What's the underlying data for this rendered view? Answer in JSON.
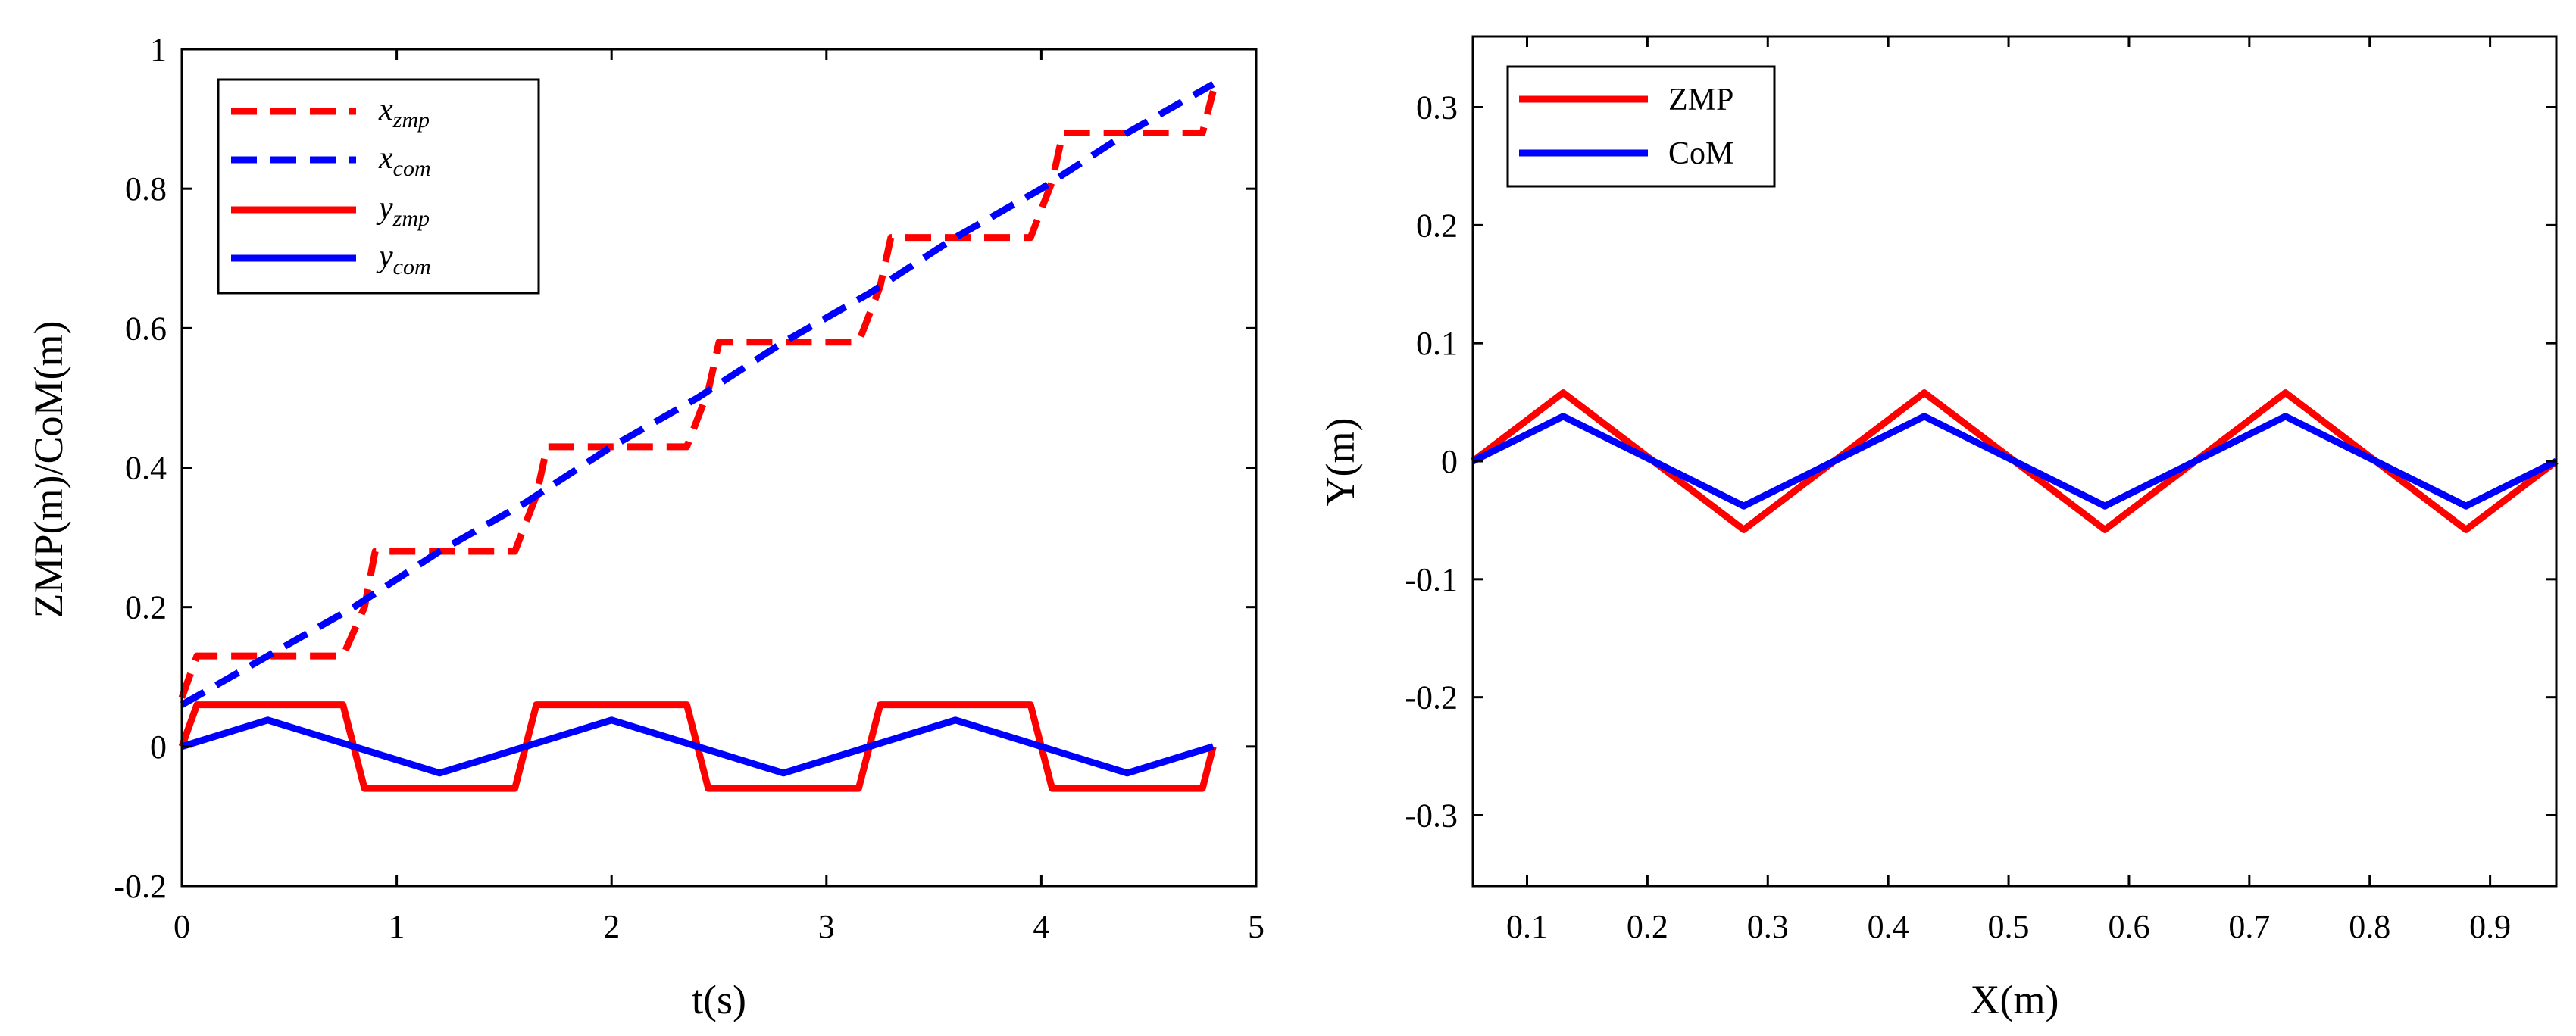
{
  "chart_data": [
    {
      "type": "line",
      "title": "",
      "xlabel": "t(s)",
      "ylabel": "ZMP(m)/CoM(m)",
      "xlim": [
        0,
        5
      ],
      "ylim": [
        -0.2,
        1
      ],
      "xticks": [
        "0",
        "1",
        "2",
        "3",
        "4",
        "5"
      ],
      "yticks": [
        "-0.2",
        "0",
        "0.2",
        "0.4",
        "0.6",
        "0.8",
        "1"
      ],
      "legend_position": "top-left",
      "series": [
        {
          "name": "x",
          "subscript": "zmp",
          "color": "#ff0000",
          "style": "dashed",
          "x": [
            0,
            0.07,
            0.75,
            0.85,
            0.9,
            1.55,
            1.65,
            1.7,
            2.35,
            2.45,
            2.5,
            3.15,
            3.25,
            3.3,
            3.95,
            4.05,
            4.1,
            4.75,
            4.8
          ],
          "y": [
            0.07,
            0.13,
            0.13,
            0.2,
            0.28,
            0.28,
            0.36,
            0.43,
            0.43,
            0.51,
            0.58,
            0.58,
            0.66,
            0.73,
            0.73,
            0.81,
            0.88,
            0.88,
            0.94
          ]
        },
        {
          "name": "x",
          "subscript": "com",
          "color": "#0000ff",
          "style": "dashed",
          "x": [
            0,
            0.4,
            0.8,
            1.2,
            1.6,
            2.0,
            2.4,
            2.8,
            3.2,
            3.6,
            4.0,
            4.4,
            4.8
          ],
          "y": [
            0.06,
            0.13,
            0.2,
            0.28,
            0.35,
            0.43,
            0.5,
            0.58,
            0.65,
            0.73,
            0.8,
            0.88,
            0.95
          ]
        },
        {
          "name": "y",
          "subscript": "zmp",
          "color": "#ff0000",
          "style": "solid",
          "x": [
            0,
            0.07,
            0.75,
            0.85,
            1.55,
            1.65,
            2.35,
            2.45,
            3.15,
            3.25,
            3.95,
            4.05,
            4.75,
            4.8
          ],
          "y": [
            0,
            0.06,
            0.06,
            -0.06,
            -0.06,
            0.06,
            0.06,
            -0.06,
            -0.06,
            0.06,
            0.06,
            -0.06,
            -0.06,
            0
          ]
        },
        {
          "name": "y",
          "subscript": "com",
          "color": "#0000ff",
          "style": "solid",
          "x": [
            0,
            0.4,
            0.8,
            1.2,
            1.6,
            2.0,
            2.4,
            2.8,
            3.2,
            3.6,
            4.0,
            4.4,
            4.8
          ],
          "y": [
            0,
            0.038,
            0,
            -0.038,
            0,
            0.038,
            0,
            -0.038,
            0,
            0.038,
            0,
            -0.038,
            0
          ]
        }
      ]
    },
    {
      "type": "line",
      "title": "",
      "xlabel": "X(m)",
      "ylabel": "Y(m)",
      "xlim": [
        0.055,
        0.955
      ],
      "ylim": [
        -0.36,
        0.36
      ],
      "xticks": [
        "0.1",
        "0.2",
        "0.3",
        "0.4",
        "0.5",
        "0.6",
        "0.7",
        "0.8",
        "0.9"
      ],
      "yticks": [
        "-0.3",
        "-0.2",
        "-0.1",
        "0",
        "0.1",
        "0.2",
        "0.3"
      ],
      "legend_position": "top-left",
      "series": [
        {
          "name": "ZMP",
          "color": "#ff0000",
          "style": "solid",
          "x": [
            0.055,
            0.13,
            0.28,
            0.43,
            0.58,
            0.73,
            0.88,
            0.955
          ],
          "y": [
            0,
            0.058,
            -0.058,
            0.058,
            -0.058,
            0.058,
            -0.058,
            0
          ]
        },
        {
          "name": "CoM",
          "color": "#0000ff",
          "style": "solid",
          "x": [
            0.055,
            0.13,
            0.28,
            0.43,
            0.58,
            0.73,
            0.88,
            0.955
          ],
          "y": [
            0,
            0.038,
            -0.038,
            0.038,
            -0.038,
            0.038,
            -0.038,
            0
          ]
        }
      ]
    }
  ]
}
